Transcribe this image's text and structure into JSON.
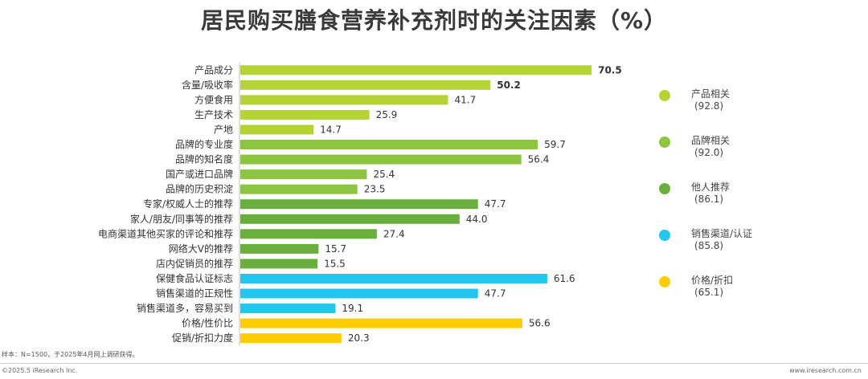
{
  "chart_data": {
    "type": "bar",
    "orientation": "horizontal",
    "title": "居民购买膳食营养补充剂时的关注因素（%）",
    "xlabel": "",
    "ylabel": "",
    "xlim": [
      0,
      80
    ],
    "grid": false,
    "categories": [
      "产品成分",
      "含量/吸收率",
      "方便食用",
      "生产技术",
      "产地",
      "品牌的专业度",
      "品牌的知名度",
      "国产或进口品牌",
      "品牌的历史积淀",
      "专家/权威人士的推荐",
      "家人/朋友/同事等的推荐",
      "电商渠道其他买家的评论和推荐",
      "网络大V的推荐",
      "店内促销员的推荐",
      "保健食品认证标志",
      "销售渠道的正规性",
      "销售渠道多，容易买到",
      "价格/性价比",
      "促销/折扣力度"
    ],
    "values": [
      70.5,
      50.2,
      41.7,
      25.9,
      14.7,
      59.7,
      56.4,
      25.4,
      23.5,
      47.7,
      44.0,
      27.4,
      15.7,
      15.5,
      61.6,
      47.7,
      19.1,
      56.6,
      20.3
    ],
    "value_labels": [
      "70.5",
      "50.2",
      "41.7",
      "25.9",
      "14.7",
      "59.7",
      "56.4",
      "25.4",
      "23.5",
      "47.7",
      "44.0",
      "27.4",
      "15.7",
      "15.5",
      "61.6",
      "47.7",
      "19.1",
      "56.6",
      "20.3"
    ],
    "bold_labels": [
      true,
      true,
      false,
      false,
      false,
      false,
      false,
      false,
      false,
      false,
      false,
      false,
      false,
      false,
      false,
      false,
      false,
      false,
      false
    ],
    "groups": [
      0,
      0,
      0,
      0,
      0,
      1,
      1,
      1,
      1,
      2,
      2,
      2,
      2,
      2,
      3,
      3,
      3,
      4,
      4
    ],
    "legend": [
      {
        "name": "产品相关",
        "total": "(92.8)",
        "color": "#b5d334"
      },
      {
        "name": "品牌相关",
        "total": "(92.0)",
        "color": "#8cc63f"
      },
      {
        "name": "他人推荐",
        "total": "(86.1)",
        "color": "#6aaf3d"
      },
      {
        "name": "销售渠道/认证",
        "total": "(85.8)",
        "color": "#22c6ee"
      },
      {
        "name": "价格/折扣",
        "total": "(65.1)",
        "color": "#fccd00"
      }
    ],
    "legend_position": "right"
  },
  "footnote": "样本：N=1500，于2025年4月网上调研获得。",
  "copyright": "©2025.5 iResearch Inc.",
  "website": "www.iresearch.com.cn"
}
